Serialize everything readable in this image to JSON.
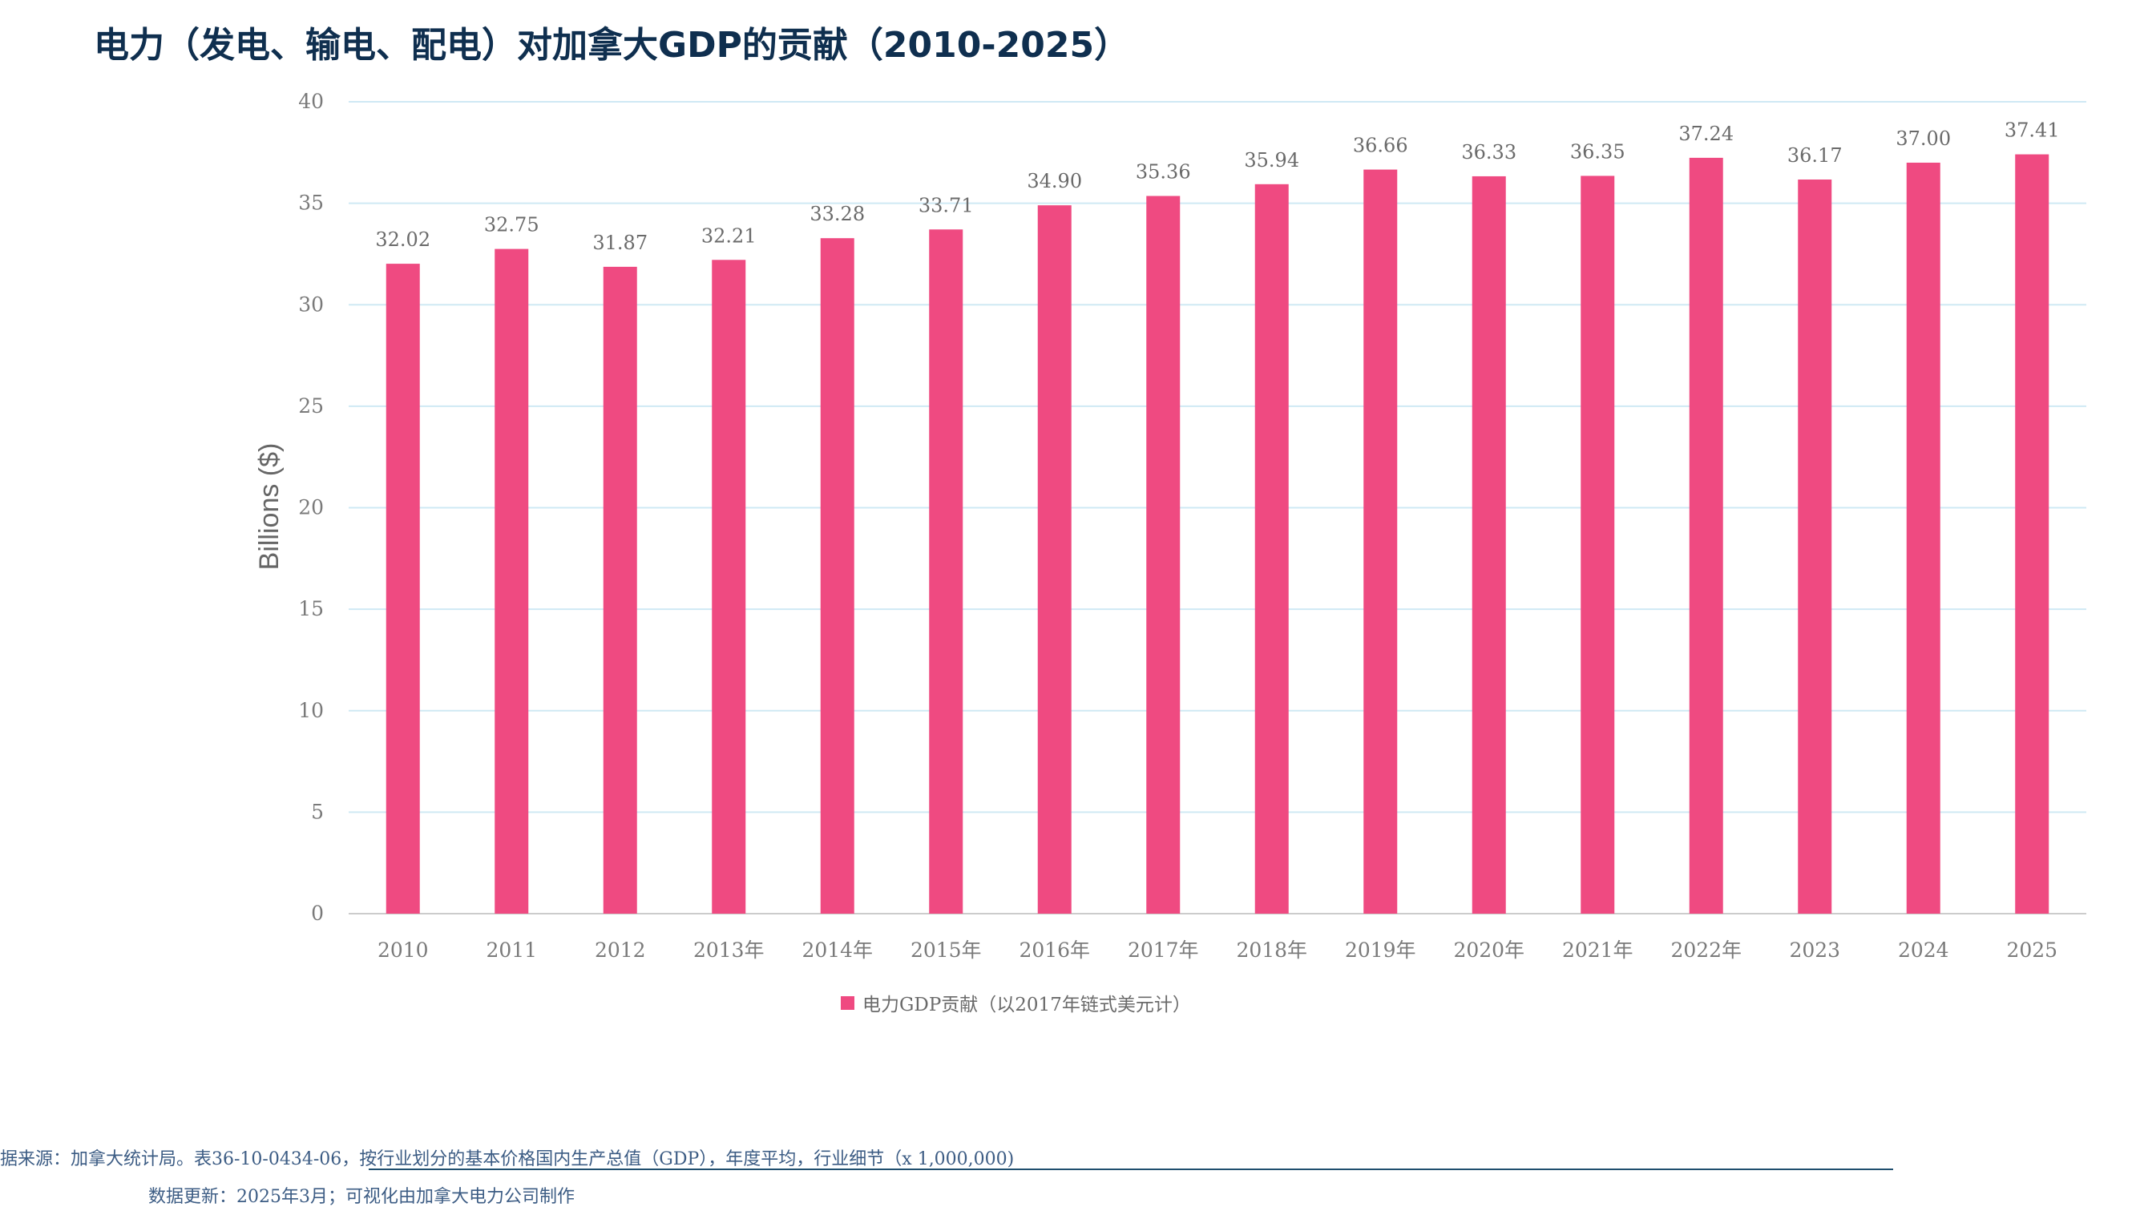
{
  "title": "电力（发电、输电、配电）对加拿大GDP的贡献（2010-2025）",
  "colors": {
    "bar": "#ef4a81",
    "grid": "#cfe9f4",
    "baseline": "#cccccc",
    "title": "#0f2f4f"
  },
  "chart_data": {
    "type": "bar",
    "categories": [
      "2010",
      "2011",
      "2012",
      "2013年",
      "2014年",
      "2015年",
      "2016年",
      "2017年",
      "2018年",
      "2019年",
      "2020年",
      "2021年",
      "2022年",
      "2023",
      "2024",
      "2025"
    ],
    "series": [
      {
        "name": "电力GDP贡献（以2017年链式美元计）",
        "values": [
          32.02,
          32.75,
          31.87,
          32.21,
          33.28,
          33.71,
          34.9,
          35.36,
          35.94,
          36.66,
          36.33,
          36.35,
          37.24,
          36.17,
          37.0,
          37.41
        ],
        "labels": [
          "32.02",
          "32.75",
          "31.87",
          "32.21",
          "33.28",
          "33.71",
          "34.90",
          "35.36",
          "35.94",
          "36.66",
          "36.33",
          "36.35",
          "37.24",
          "36.17",
          "37.00",
          "37.41"
        ]
      }
    ],
    "ylabel": "Billions ($)",
    "xlabel": "",
    "ylim": [
      0,
      40
    ],
    "yticks": [
      "0",
      "5",
      "10",
      "15",
      "20",
      "25",
      "30",
      "35",
      "40"
    ],
    "grid": true,
    "legend_position": "bottom"
  },
  "footer": {
    "source": "据来源：加拿大统计局。表36-10-0434-06，按行业划分的基本价格国内生产总值（GDP），年度平均，行业细节（x 1,000,000)",
    "updated": "数据更新：2025年3月；可视化由加拿大电力公司制作"
  }
}
